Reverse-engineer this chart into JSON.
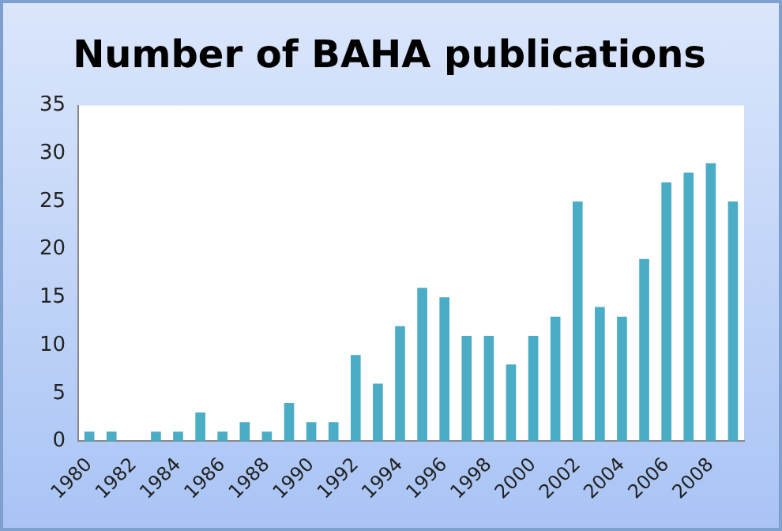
{
  "chart_data": {
    "type": "bar",
    "title": "Number of BAHA publications",
    "categories": [
      "1980",
      null,
      "1982",
      null,
      "1984",
      null,
      "1986",
      null,
      "1988",
      null,
      "1990",
      null,
      "1992",
      null,
      "1994",
      null,
      "1996",
      null,
      "1998",
      null,
      "2000",
      null,
      "2002",
      null,
      "2004",
      null,
      "2006",
      null,
      "2008",
      null
    ],
    "values": [
      1,
      1,
      0,
      1,
      1,
      3,
      1,
      2,
      1,
      4,
      2,
      2,
      9,
      6,
      12,
      16,
      15,
      11,
      11,
      8,
      11,
      13,
      25,
      14,
      13,
      19,
      27,
      28,
      29,
      25
    ],
    "color": "#4bacc6",
    "ylim": [
      0,
      35
    ],
    "yticks": [
      0,
      5,
      10,
      15,
      20,
      25,
      30,
      35
    ],
    "grid": false,
    "legend": false
  }
}
